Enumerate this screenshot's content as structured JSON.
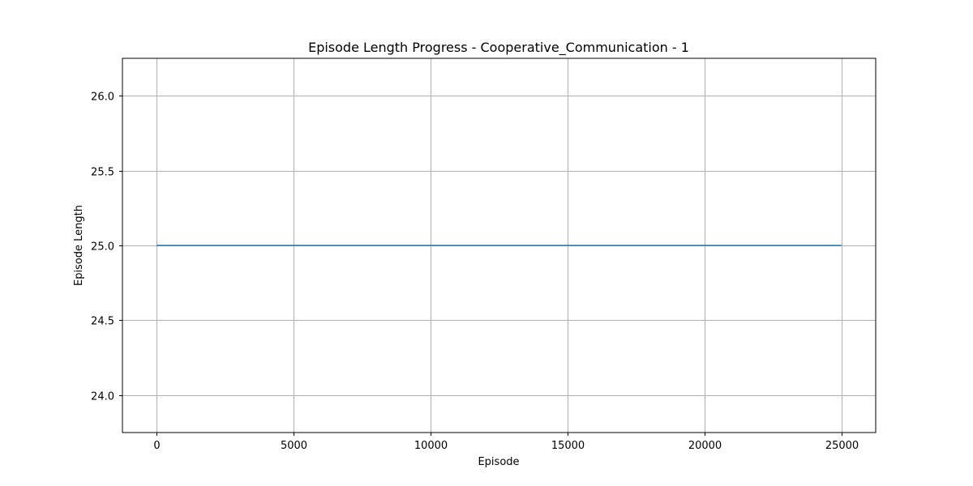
{
  "chart_data": {
    "type": "line",
    "title": "Episode Length Progress - Cooperative_Communication - 1",
    "xlabel": "Episode",
    "ylabel": "Episode Length",
    "xlim": [
      -1250,
      26250
    ],
    "ylim": [
      23.75,
      26.25
    ],
    "xticks": [
      0,
      5000,
      10000,
      15000,
      20000,
      25000
    ],
    "xtick_labels": [
      "0",
      "5000",
      "10000",
      "15000",
      "20000",
      "25000"
    ],
    "yticks": [
      24.0,
      24.5,
      25.0,
      25.5,
      26.0
    ],
    "ytick_labels": [
      "24.0",
      "24.5",
      "25.0",
      "25.5",
      "26.0"
    ],
    "grid": true,
    "series": [
      {
        "color": "#1f77b4",
        "x": [
          0,
          25000
        ],
        "y": [
          25.0,
          25.0
        ]
      }
    ]
  }
}
